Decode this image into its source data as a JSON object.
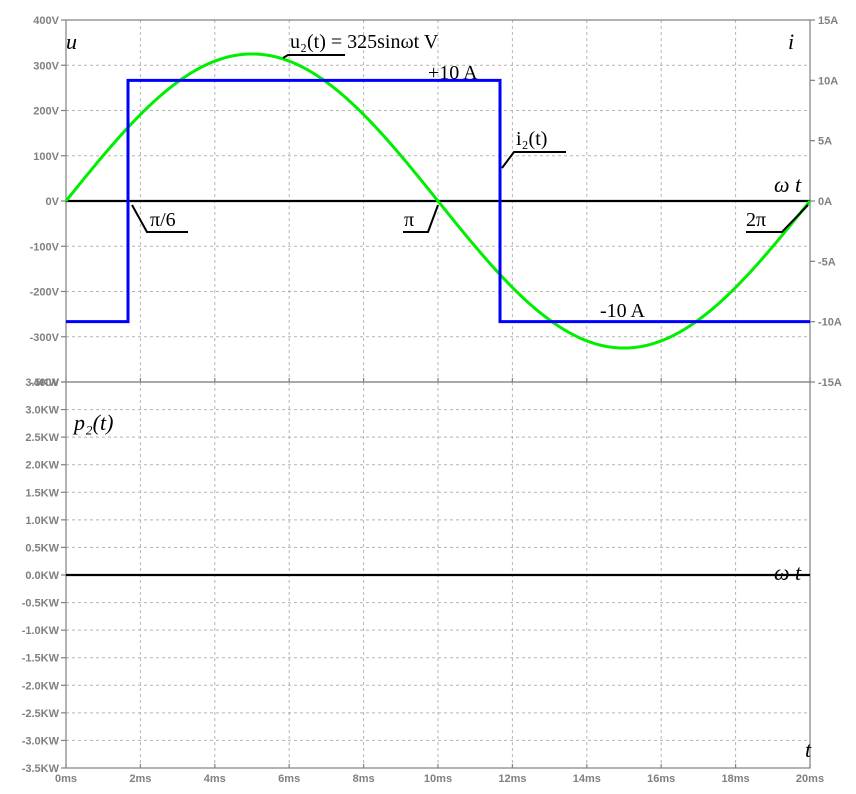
{
  "chart_data": [
    {
      "type": "line",
      "x_unit": "ms",
      "xlim": [
        0,
        20
      ],
      "x_ticks": [
        "0ms",
        "2ms",
        "4ms",
        "6ms",
        "8ms",
        "10ms",
        "12ms",
        "14ms",
        "16ms",
        "18ms",
        "20ms"
      ],
      "left_axis": {
        "label": "u",
        "ylim": [
          -400,
          400
        ],
        "ticks": [
          "400V",
          "300V",
          "200V",
          "100V",
          "0V",
          "-100V",
          "-200V",
          "-300V",
          "-400V"
        ]
      },
      "right_axis": {
        "label": "i",
        "ylim": [
          -15,
          15
        ],
        "ticks": [
          "15A",
          "10A",
          "5A",
          "0A",
          "-5A",
          "-10A",
          "-15A"
        ]
      },
      "series": [
        {
          "name": "u2(t) = 325sinωt V",
          "color": "#00ee00",
          "axis": "left",
          "amplitude": 325,
          "period_ms": 20
        },
        {
          "name": "i2(t)",
          "color": "#0000ff",
          "axis": "right",
          "x": [
            0,
            1.667,
            1.667,
            11.667,
            11.667,
            20
          ],
          "y": [
            -10,
            -10,
            10,
            10,
            -10,
            -10
          ]
        }
      ],
      "annotations": {
        "u2_title": "u₂(t) = 325sinωt V",
        "plus10": "+10 A",
        "minus10": "-10 A",
        "i2": "i₂(t)",
        "omega_t": "ω t",
        "pi6": "π/6",
        "pi": "π",
        "twopi": "2π"
      },
      "grid": true
    },
    {
      "type": "line",
      "x_unit": "ms",
      "xlim": [
        0,
        20
      ],
      "x_ticks": [
        "0ms",
        "2ms",
        "4ms",
        "6ms",
        "8ms",
        "10ms",
        "12ms",
        "14ms",
        "16ms",
        "18ms",
        "20ms"
      ],
      "y_label": "p₂(t)",
      "ylim": [
        -3.5,
        3.5
      ],
      "y_ticks": [
        "3.5KW",
        "3.0KW",
        "2.5KW",
        "2.0KW",
        "1.5KW",
        "1.0KW",
        "0.5KW",
        "0.0KW",
        "-0.5KW",
        "-1.0KW",
        "-1.5KW",
        "-2.0KW",
        "-2.5KW",
        "-3.0KW",
        "-3.5KW"
      ],
      "annotations": {
        "omega_t": "ω t",
        "t": "t"
      },
      "grid": true
    }
  ]
}
